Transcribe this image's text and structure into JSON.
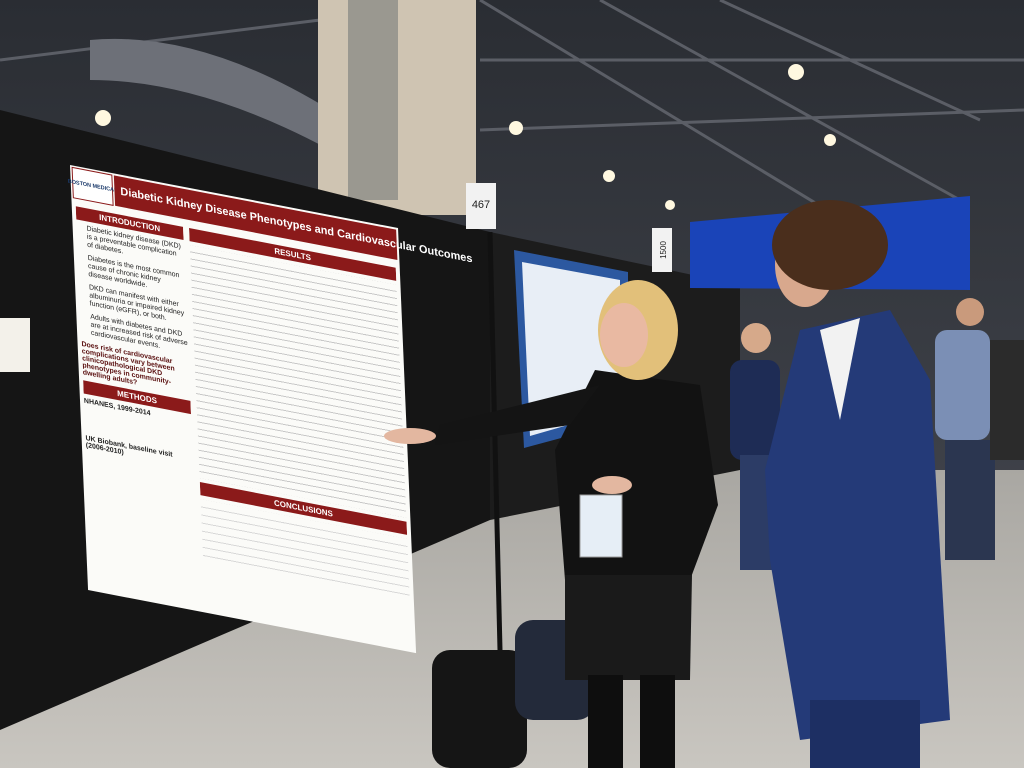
{
  "poster": {
    "logo": "BOSTON MEDICAL",
    "title": "Diabetic Kidney Disease Phenotypes and Cardiovascular Outcomes",
    "introduction": {
      "heading": "INTRODUCTION",
      "bullets": [
        "Diabetic kidney disease (DKD) is a preventable complication of diabetes.",
        "Diabetes is the most common cause of chronic kidney disease worldwide.",
        "DKD can manifest with either albuminuria or impaired kidney function (eGFR), or both.",
        "Adults with diabetes and DKD are at increased risk of adverse cardiovascular events."
      ]
    },
    "question": "Does risk of cardiovascular complications vary between clinicopathological DKD phenotypes in community-dwelling adults?",
    "methods": {
      "heading": "METHODS",
      "lines": [
        "NHANES, 1999-2014",
        "UK Biobank, baseline visit (2006-2010)"
      ]
    },
    "results": {
      "heading": "RESULTS"
    },
    "conclusions": {
      "heading": "CONCLUSIONS"
    }
  },
  "signs": {
    "booth": "467",
    "aisle": "1500"
  }
}
